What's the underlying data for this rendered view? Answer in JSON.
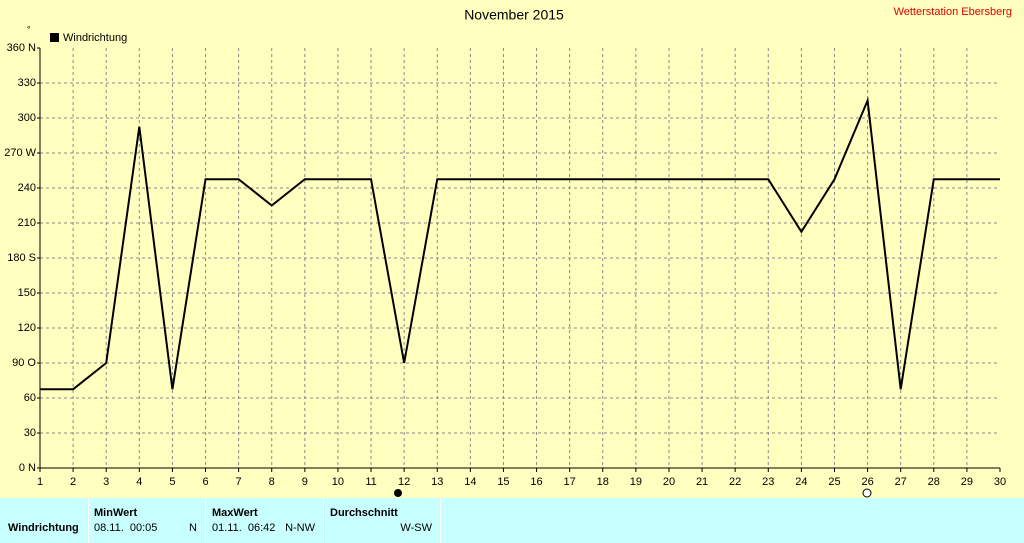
{
  "chart_data": {
    "type": "line",
    "title": "November 2015",
    "source": "Wetterstation Ebersberg",
    "y_unit": "°",
    "x": [
      1,
      2,
      3,
      4,
      5,
      6,
      7,
      8,
      9,
      10,
      11,
      12,
      13,
      14,
      15,
      16,
      17,
      18,
      19,
      20,
      21,
      22,
      23,
      24,
      25,
      26,
      27,
      28,
      29,
      30
    ],
    "series": [
      {
        "name": "Windrichtung",
        "color": "#000000",
        "values": [
          67.5,
          67.5,
          90,
          292.5,
          67.5,
          247.5,
          247.5,
          225,
          247.5,
          247.5,
          247.5,
          90,
          247.5,
          247.5,
          247.5,
          247.5,
          247.5,
          247.5,
          247.5,
          247.5,
          247.5,
          247.5,
          247.5,
          202.5,
          247.5,
          315,
          67.5,
          247.5,
          247.5,
          247.5
        ]
      }
    ],
    "xlim": [
      1,
      30
    ],
    "xticks": [
      1,
      2,
      3,
      4,
      5,
      6,
      7,
      8,
      9,
      10,
      11,
      12,
      13,
      14,
      15,
      16,
      17,
      18,
      19,
      20,
      21,
      22,
      23,
      24,
      25,
      26,
      27,
      28,
      29,
      30
    ],
    "ylim": [
      0,
      360
    ],
    "yticks": [
      {
        "value": 0,
        "label": "0 N"
      },
      30,
      60,
      {
        "value": 90,
        "label": "90 O"
      },
      120,
      150,
      {
        "value": 180,
        "label": "180 S"
      },
      210,
      240,
      {
        "value": 270,
        "label": "270 W"
      },
      300,
      330,
      {
        "value": 360,
        "label": "360 N"
      }
    ],
    "grid": true,
    "legend": "top-left"
  },
  "table": {
    "row_label": "Windrichtung",
    "columns": [
      {
        "header": "MinWert",
        "time": "08.11.  00:05",
        "direction": "N"
      },
      {
        "header": "MaxWert",
        "time": "01.11.  06:42",
        "direction": "N-NW"
      },
      {
        "header": "Durchschnitt",
        "direction": "W-SW"
      }
    ]
  }
}
